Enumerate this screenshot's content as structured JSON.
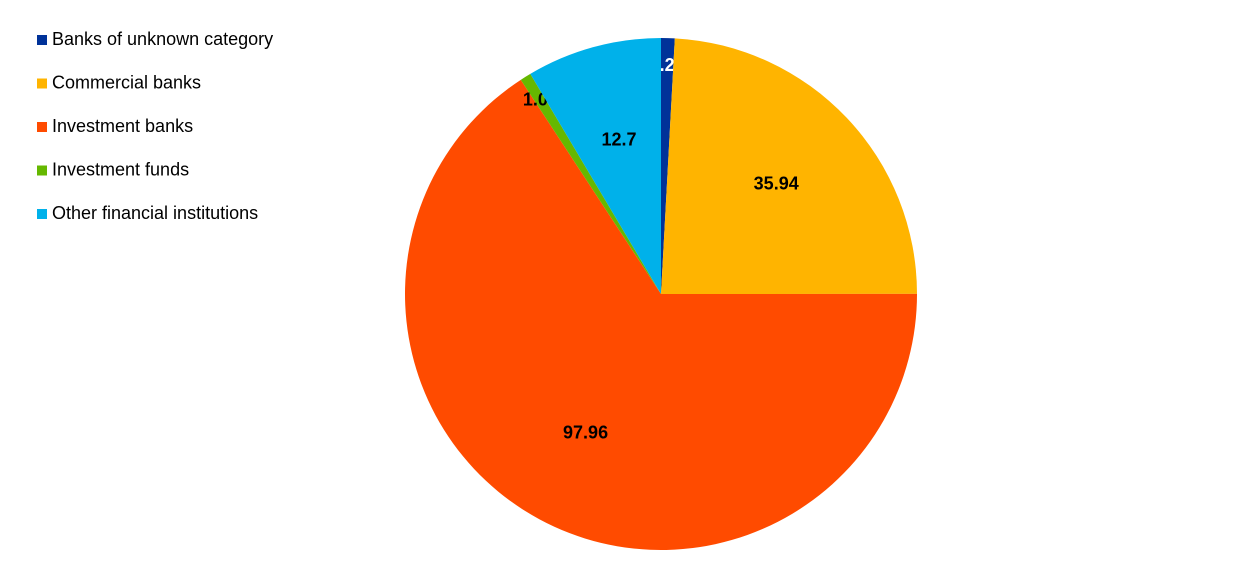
{
  "chart_data": {
    "type": "pie",
    "categories": [
      "Banks of unknown category",
      "Commercial banks",
      "Investment banks",
      "Investment funds",
      "Other financial institutions"
    ],
    "values": [
      1.28,
      35.94,
      97.96,
      1.04,
      12.7
    ],
    "colors": [
      "#003299",
      "#ffb400",
      "#ff4b00",
      "#65b800",
      "#00b1ea"
    ],
    "legend": "top-left"
  }
}
